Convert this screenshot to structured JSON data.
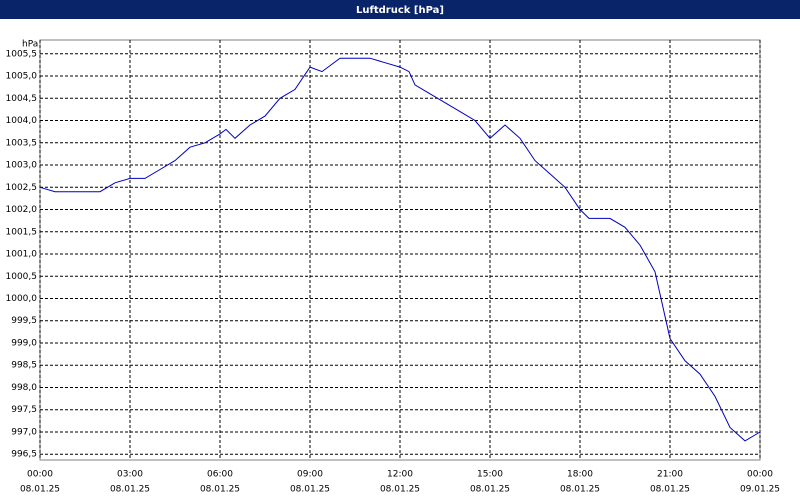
{
  "chart_data": {
    "type": "line",
    "title": "Luftdruck [hPa]",
    "ylabel": "hPa",
    "x": [
      0,
      0.5,
      2,
      2.5,
      3,
      3.5,
      4,
      4.5,
      5,
      5.5,
      6,
      6.2,
      6.5,
      7,
      7.5,
      8,
      8.5,
      9,
      9.4,
      10,
      11,
      11.5,
      12,
      12.3,
      12.5,
      13,
      13.5,
      14,
      14.5,
      15,
      15.5,
      16,
      16.5,
      17,
      17.5,
      18,
      18.3,
      19,
      19.5,
      20,
      20.5,
      21,
      21.5,
      22,
      22.5,
      23,
      23.5,
      24
    ],
    "series": [
      {
        "name": "Luftdruck",
        "color": "#0000c0",
        "values": [
          1002.5,
          1002.4,
          1002.4,
          1002.6,
          1002.7,
          1002.7,
          1002.9,
          1003.1,
          1003.4,
          1003.5,
          1003.7,
          1003.8,
          1003.6,
          1003.9,
          1004.1,
          1004.5,
          1004.7,
          1005.2,
          1005.1,
          1005.4,
          1005.4,
          1005.3,
          1005.2,
          1005.1,
          1004.8,
          1004.6,
          1004.4,
          1004.2,
          1004.0,
          1003.6,
          1003.9,
          1003.6,
          1003.1,
          1002.8,
          1002.5,
          1002.0,
          1001.8,
          1001.8,
          1001.6,
          1001.2,
          1000.6,
          999.1,
          998.6,
          998.3,
          997.8,
          997.1,
          996.8,
          997.0
        ]
      }
    ],
    "xlim": [
      0,
      24
    ],
    "xticks": [
      {
        "value": 0,
        "label": [
          "00:00",
          "08.01.25"
        ]
      },
      {
        "value": 3,
        "label": [
          "03:00",
          "08.01.25"
        ]
      },
      {
        "value": 6,
        "label": [
          "06:00",
          "08.01.25"
        ]
      },
      {
        "value": 9,
        "label": [
          "09:00",
          "08.01.25"
        ]
      },
      {
        "value": 12,
        "label": [
          "12:00",
          "08.01.25"
        ]
      },
      {
        "value": 15,
        "label": [
          "15:00",
          "08.01.25"
        ]
      },
      {
        "value": 18,
        "label": [
          "18:00",
          "08.01.25"
        ]
      },
      {
        "value": 21,
        "label": [
          "21:00",
          "08.01.25"
        ]
      },
      {
        "value": 24,
        "label": [
          "00:00",
          "09.01.25"
        ]
      }
    ],
    "ylim": [
      996.37,
      1005.81
    ],
    "yticks": [
      {
        "value": 996.5,
        "label": "996,5"
      },
      {
        "value": 997,
        "label": "997,0"
      },
      {
        "value": 997.5,
        "label": "997,5"
      },
      {
        "value": 998,
        "label": "998,0"
      },
      {
        "value": 998.5,
        "label": "998,5"
      },
      {
        "value": 999,
        "label": "999,0"
      },
      {
        "value": 999.5,
        "label": "999,5"
      },
      {
        "value": 1000,
        "label": "1000,0"
      },
      {
        "value": 1000.5,
        "label": "1000,5"
      },
      {
        "value": 1001,
        "label": "1001,0"
      },
      {
        "value": 1001.5,
        "label": "1001,5"
      },
      {
        "value": 1002,
        "label": "1002,0"
      },
      {
        "value": 1002.5,
        "label": "1002,5"
      },
      {
        "value": 1003,
        "label": "1003,0"
      },
      {
        "value": 1003.5,
        "label": "1003,5"
      },
      {
        "value": 1004,
        "label": "1004,0"
      },
      {
        "value": 1004.5,
        "label": "1004,5"
      },
      {
        "value": 1005,
        "label": "1005,0"
      },
      {
        "value": 1005.5,
        "label": "1005,5"
      }
    ],
    "grid": true
  }
}
